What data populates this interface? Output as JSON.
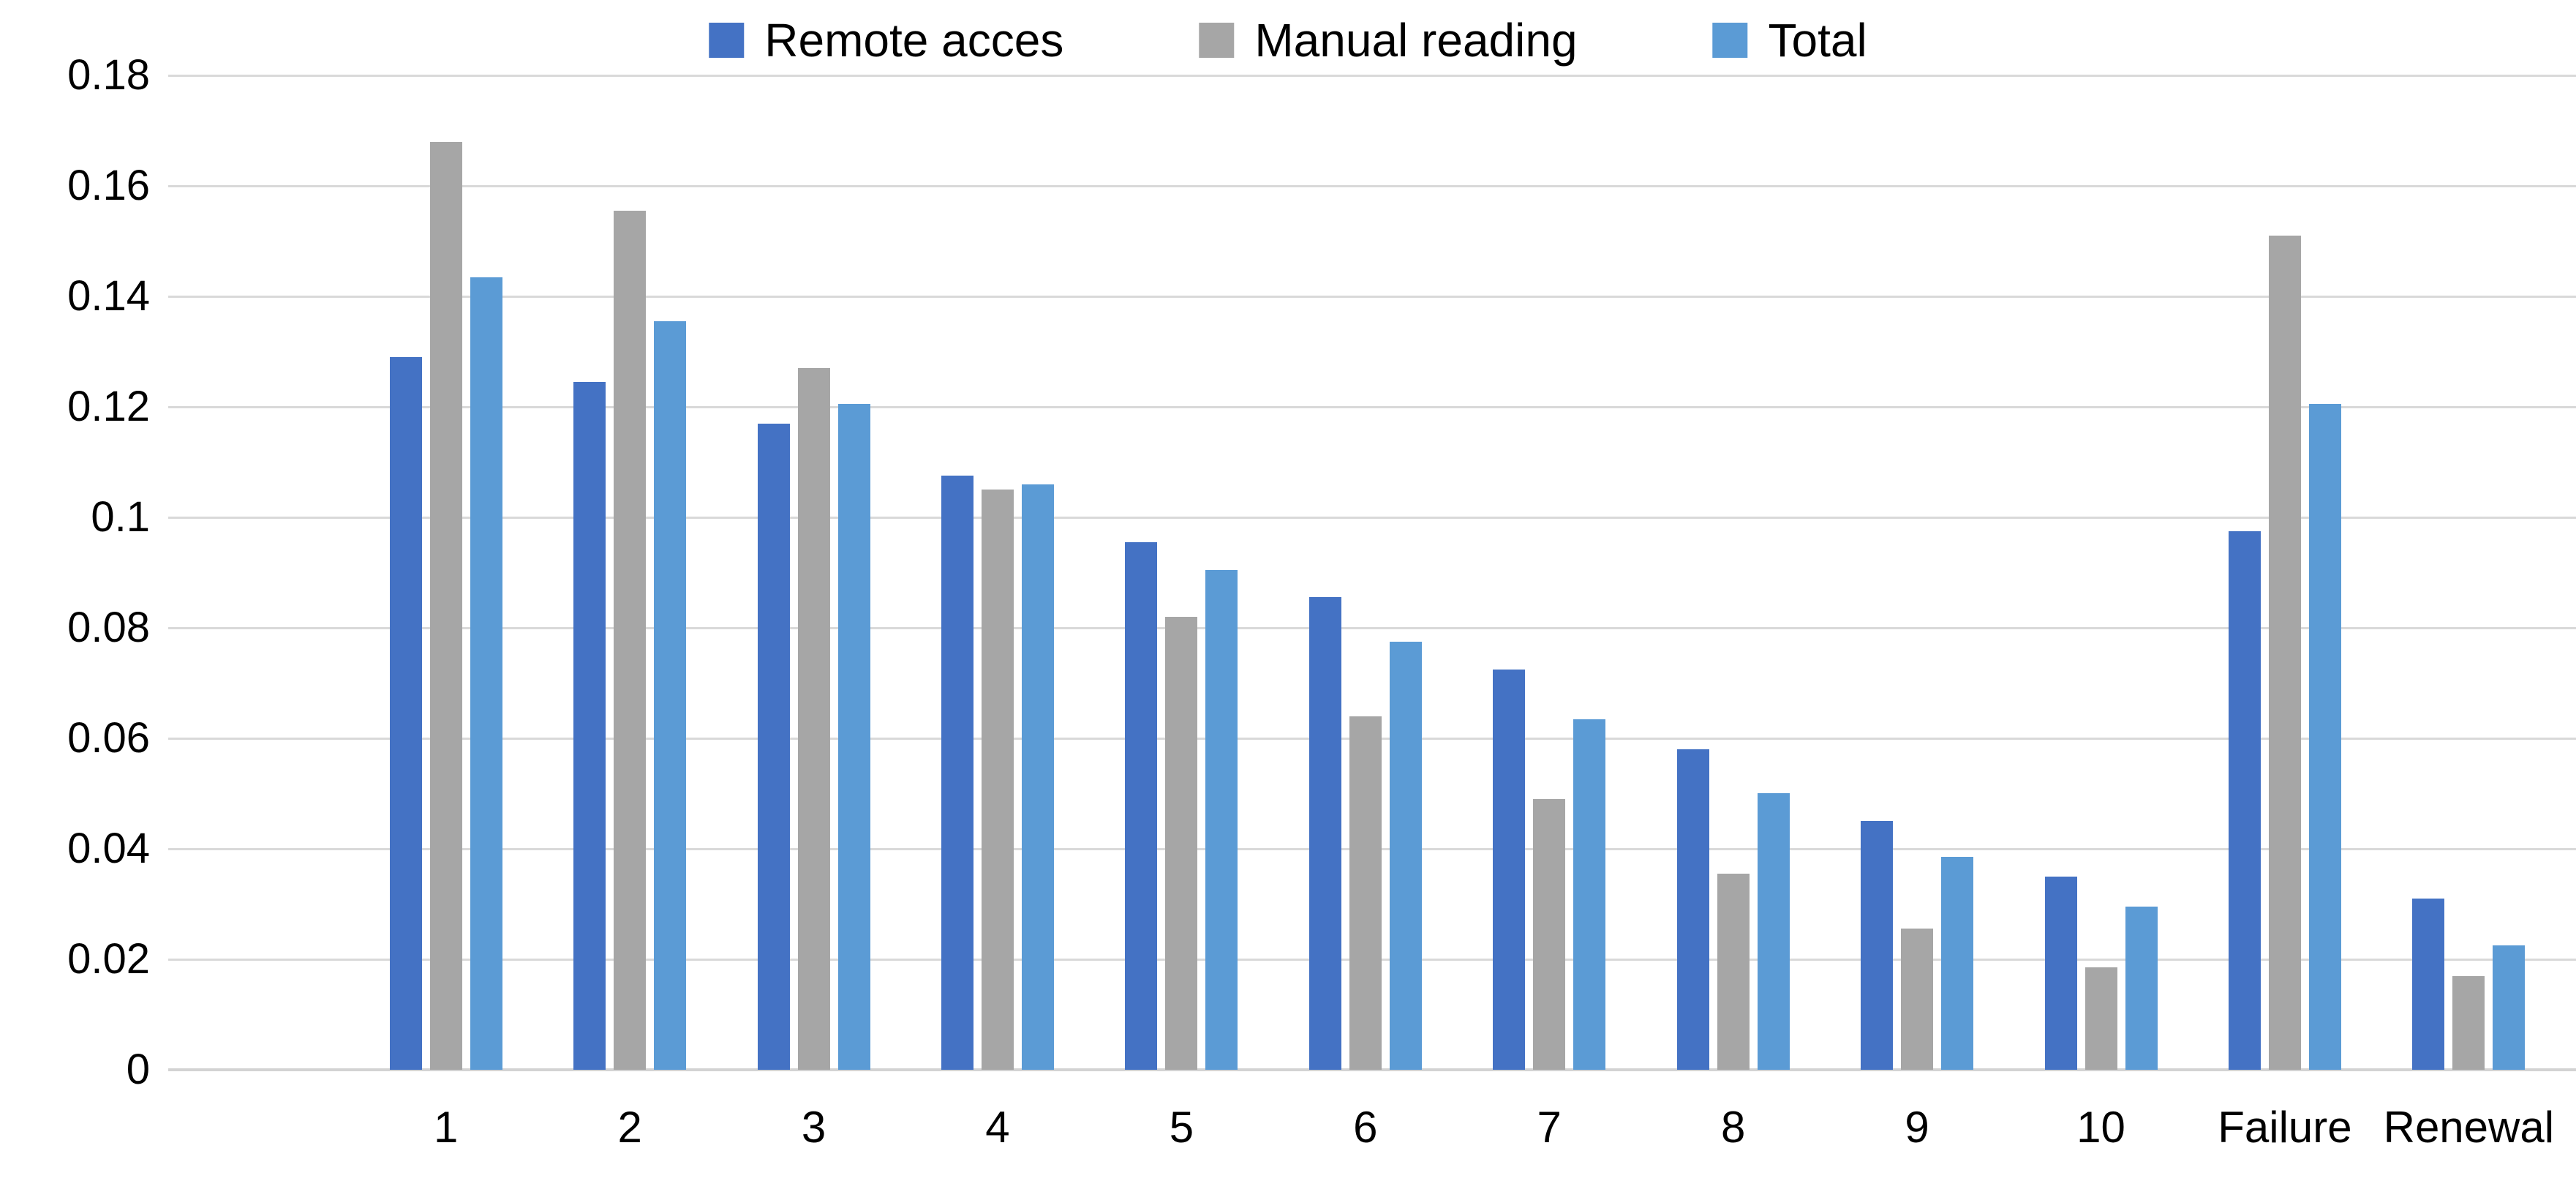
{
  "chart_data": {
    "type": "bar",
    "title": "",
    "background": "#FFFFFF",
    "text_color": "#000000",
    "gridline_color": "#D9D9D9",
    "grid": true,
    "legend_position": "top",
    "categories": [
      "1",
      "2",
      "3",
      "4",
      "5",
      "6",
      "7",
      "8",
      "9",
      "10",
      "Failure",
      "Renewal"
    ],
    "series": [
      {
        "name": "Remote acces",
        "color": "#4472C4",
        "values": [
          0.129,
          0.1245,
          0.117,
          0.1075,
          0.0955,
          0.0855,
          0.0725,
          0.058,
          0.045,
          0.035,
          0.0975,
          0.031
        ]
      },
      {
        "name": "Manual reading",
        "color": "#A6A6A6",
        "values": [
          0.168,
          0.1555,
          0.127,
          0.105,
          0.082,
          0.064,
          0.049,
          0.0355,
          0.0255,
          0.0185,
          0.151,
          0.017
        ]
      },
      {
        "name": "Total",
        "color": "#5B9BD5",
        "values": [
          0.1435,
          0.1355,
          0.1205,
          0.106,
          0.0905,
          0.0775,
          0.0635,
          0.05,
          0.0385,
          0.0295,
          0.1205,
          0.0225
        ]
      }
    ],
    "yticks": [
      {
        "label": "0.18",
        "value": 0.18
      },
      {
        "label": "0.16",
        "value": 0.16
      },
      {
        "label": "0.14",
        "value": 0.14
      },
      {
        "label": "0.12",
        "value": 0.12
      },
      {
        "label": "0.1",
        "value": 0.1
      },
      {
        "label": "0.08",
        "value": 0.08
      },
      {
        "label": "0.06",
        "value": 0.06
      },
      {
        "label": "0.04",
        "value": 0.04
      },
      {
        "label": "0.02",
        "value": 0.02
      },
      {
        "label": "0",
        "value": 0
      }
    ],
    "ylim": [
      0,
      0.18
    ]
  }
}
